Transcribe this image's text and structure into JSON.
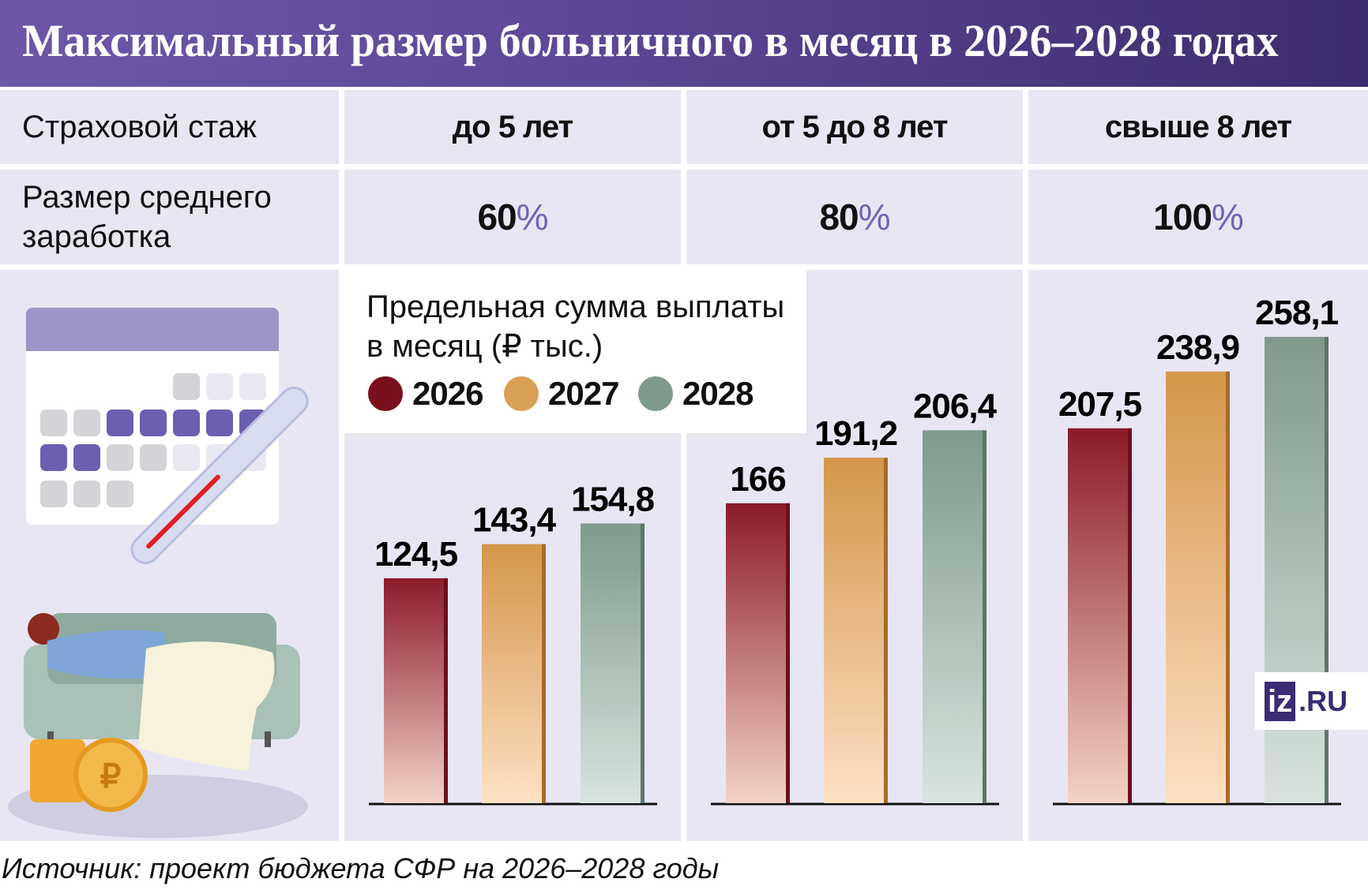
{
  "title": "Максимальный размер больничного в месяц в 2026–2028 годах",
  "table": {
    "row1_label": "Страховой стаж",
    "row2_label_line1": "Размер среднего",
    "row2_label_line2": "заработка",
    "columns": [
      {
        "header": "до 5 лет",
        "percent": "60",
        "percent_sign": "%"
      },
      {
        "header": "от 5 до 8 лет",
        "percent": "80",
        "percent_sign": "%"
      },
      {
        "header": "свыше 8 лет",
        "percent": "100",
        "percent_sign": "%"
      }
    ]
  },
  "chart_data": {
    "type": "bar",
    "title": "Предельная сумма выплаты в месяц (₽ тыс.)",
    "subtitle_line1": "Предельная сумма выплаты",
    "subtitle_line2": "в месяц (₽ тыс.)",
    "categories": [
      "до 5 лет",
      "от 5 до 8 лет",
      "свыше 8 лет"
    ],
    "series": [
      {
        "name": "2026",
        "values": [
          124.5,
          166,
          207.5
        ],
        "labels": [
          "124,5",
          "166",
          "207,5"
        ],
        "color": "#8b1a2a"
      },
      {
        "name": "2027",
        "values": [
          143.4,
          191.2,
          238.9
        ],
        "labels": [
          "143,4",
          "191,2",
          "238,9"
        ],
        "color": "#d4964a"
      },
      {
        "name": "2028",
        "values": [
          154.8,
          206.4,
          258.1
        ],
        "labels": [
          "154,8",
          "206,4",
          "258,1"
        ],
        "color": "#7f9a8c"
      }
    ],
    "legend": "top-left",
    "grid": false
  },
  "logo": {
    "iz": "iz",
    "ru": ".RU"
  },
  "footer": "Источник: проект бюджета СФР на 2026–2028 годы",
  "colors": {
    "header": "#5f4899",
    "panel": "#e8e6f3",
    "percent": "#6d63b8"
  }
}
